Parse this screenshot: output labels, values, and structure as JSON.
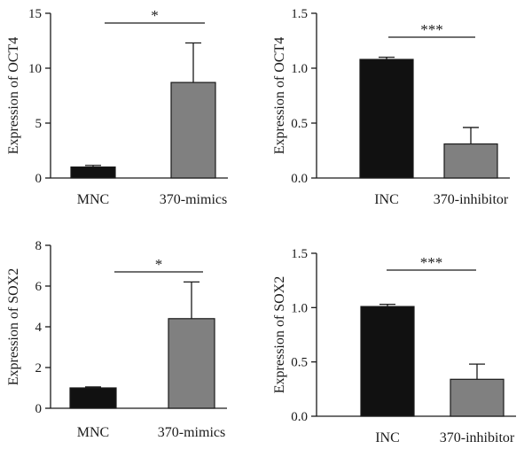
{
  "chart_data": [
    {
      "type": "bar",
      "categories": [
        "MNC",
        "370-mimics"
      ],
      "values": [
        1.0,
        8.7
      ],
      "errors": [
        0.15,
        3.6
      ],
      "colors": [
        "#111111",
        "#808080"
      ],
      "ylabel": "Expression of OCT4",
      "ylim": [
        0,
        15
      ],
      "yticks": [
        "0",
        "5",
        "10",
        "15"
      ],
      "significance": "*"
    },
    {
      "type": "bar",
      "categories": [
        "INC",
        "370-inhibitor"
      ],
      "values": [
        1.08,
        0.31
      ],
      "errors": [
        0.02,
        0.15
      ],
      "colors": [
        "#111111",
        "#808080"
      ],
      "ylabel": "Expression of OCT4",
      "ylim": [
        0,
        1.5
      ],
      "yticks": [
        "0.0",
        "0.5",
        "1.0",
        "1.5"
      ],
      "significance": "***"
    },
    {
      "type": "bar",
      "categories": [
        "MNC",
        "370-mimics"
      ],
      "values": [
        1.0,
        4.4
      ],
      "errors": [
        0.05,
        1.8
      ],
      "colors": [
        "#111111",
        "#808080"
      ],
      "ylabel": "Expression of SOX2",
      "ylim": [
        0,
        8
      ],
      "yticks": [
        "0",
        "2",
        "4",
        "6",
        "8"
      ],
      "significance": "*"
    },
    {
      "type": "bar",
      "categories": [
        "INC",
        "370-inhibitor"
      ],
      "values": [
        1.01,
        0.34
      ],
      "errors": [
        0.02,
        0.14
      ],
      "colors": [
        "#111111",
        "#808080"
      ],
      "ylabel": "Expression of SOX2",
      "ylim": [
        0,
        1.5
      ],
      "yticks": [
        "0.0",
        "0.5",
        "1.0",
        "1.5"
      ],
      "significance": "***"
    }
  ]
}
